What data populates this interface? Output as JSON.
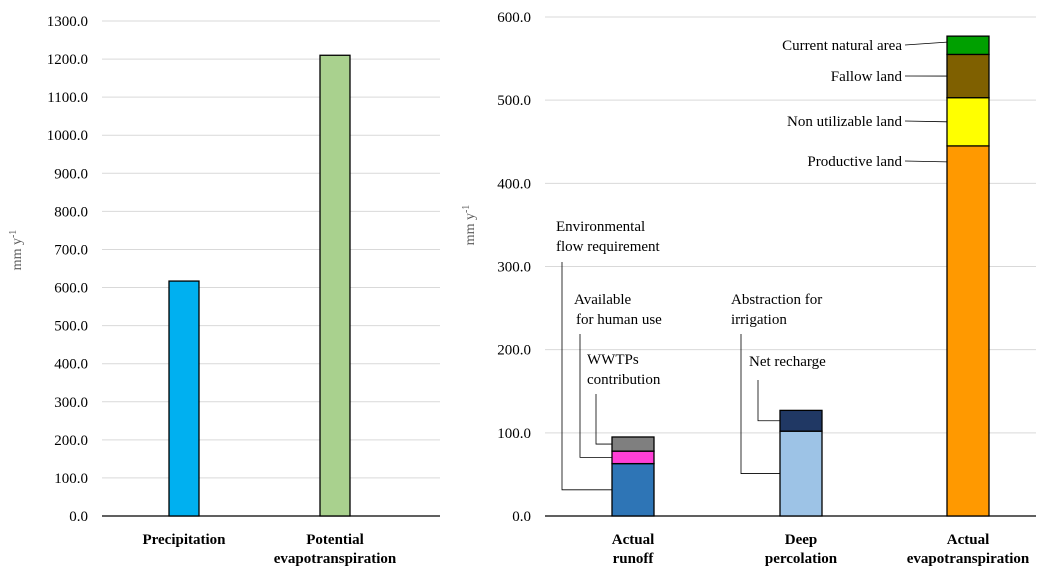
{
  "chart_data": [
    {
      "type": "bar",
      "categories": [
        [
          "Precipitation"
        ],
        [
          "Potential",
          "evapotranspiration"
        ]
      ],
      "values": [
        617,
        1210
      ],
      "colors": [
        "#00b0f0",
        "#a9d18e"
      ],
      "ylabel": "mm y",
      "ylabel_sup": "-1",
      "ylim": [
        0,
        1300
      ],
      "yticks": [
        0,
        100,
        200,
        300,
        400,
        500,
        600,
        700,
        800,
        900,
        1000,
        1100,
        1200,
        1300
      ],
      "tick_format": "0.0",
      "grid": true
    },
    {
      "type": "stacked-bar",
      "categories": [
        [
          "Actual",
          "runoff"
        ],
        [
          "Deep",
          "percolation"
        ],
        [
          "Actual",
          "evapotranspiration"
        ]
      ],
      "series": [
        {
          "name": "Environmental flow requirement",
          "category": 0,
          "value": 63,
          "color": "#2e75b6",
          "label": [
            "Environmental",
            "flow requirement"
          ]
        },
        {
          "name": "Available for human use",
          "category": 0,
          "value": 15,
          "color": "#ff3fd6",
          "label": [
            "Available",
            "for human use"
          ]
        },
        {
          "name": "WWTPs contribution",
          "category": 0,
          "value": 17,
          "color": "#7f7f7f",
          "label": [
            "WWTPs",
            "contribution"
          ]
        },
        {
          "name": "Abstraction for irrigation",
          "category": 1,
          "value": 102,
          "color": "#9dc3e6",
          "label": [
            "Abstraction for",
            "irrigation"
          ]
        },
        {
          "name": "Net recharge",
          "category": 1,
          "value": 25,
          "color": "#203864",
          "label": [
            "Net recharge"
          ]
        },
        {
          "name": "Productive land",
          "category": 2,
          "value": 445,
          "color": "#ff9900",
          "label": [
            "Productive land"
          ]
        },
        {
          "name": "Non utilizable land",
          "category": 2,
          "value": 58,
          "color": "#ffff00",
          "label": [
            "Non utilizable land"
          ]
        },
        {
          "name": "Fallow land",
          "category": 2,
          "value": 52,
          "color": "#7f6000",
          "label": [
            "Fallow land"
          ]
        },
        {
          "name": "Current natural area",
          "category": 2,
          "value": 22,
          "color": "#00a000",
          "label": [
            "Current natural area"
          ]
        }
      ],
      "ylabel": "mm y",
      "ylabel_sup": "-1",
      "ylim": [
        0,
        600
      ],
      "yticks": [
        0,
        100,
        200,
        300,
        400,
        500,
        600
      ],
      "tick_format": "0.0",
      "grid": true
    }
  ]
}
